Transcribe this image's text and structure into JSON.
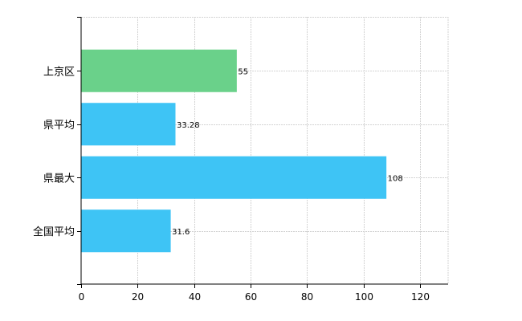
{
  "chart_data": {
    "type": "bar",
    "orientation": "horizontal",
    "categories": [
      "上京区",
      "県平均",
      "県最大",
      "全国平均"
    ],
    "values": [
      55,
      33.28,
      108,
      31.6
    ],
    "value_labels": [
      "55",
      "33.28",
      "108",
      "31.6"
    ],
    "bar_colors": [
      "#6ad18a",
      "#3ec4f5",
      "#3ec4f5",
      "#3ec4f5"
    ],
    "xlim": [
      0,
      130
    ],
    "xticks": [
      0,
      20,
      40,
      60,
      80,
      100,
      120
    ],
    "grid": true,
    "title": "",
    "xlabel": "",
    "ylabel": ""
  }
}
